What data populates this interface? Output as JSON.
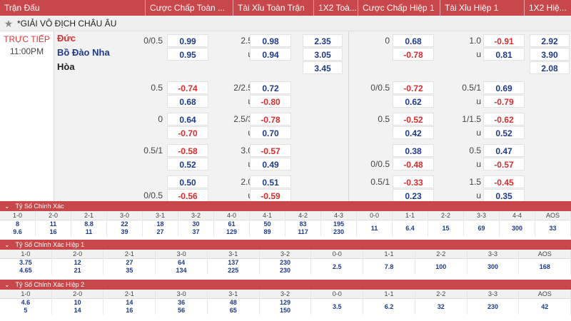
{
  "header": [
    "Trận Đấu",
    "Cược Chấp Toàn ...",
    "Tài Xỉu Toàn Trận",
    "1X2 Toà...",
    "Cược Chấp Hiệp 1",
    "Tài Xỉu Hiệp 1",
    "1X2 Hiệ..."
  ],
  "league": "*GIẢI VÔ ĐỊCH CHÂU ÂU",
  "match": {
    "status": "TRỰC TIẾP",
    "time": "11:00PM",
    "home": "Đức",
    "away": "Bồ Đào Nha",
    "draw": "Hòa"
  },
  "x12_full": [
    "2.35",
    "3.05",
    "3.45"
  ],
  "x12_half": [
    "2.92",
    "3.90",
    "2.08"
  ],
  "rows": [
    {
      "hc_full": [
        "0/0.5",
        ""
      ],
      "hc_full_odds": [
        "0.99",
        "0.95"
      ],
      "ou_full": [
        "2.5",
        "u"
      ],
      "ou_full_odds": [
        "0.98",
        "0.94"
      ],
      "hc_half": [
        "0",
        ""
      ],
      "hc_half_odds": [
        "0.68",
        "-0.78"
      ],
      "ou_half": [
        "1.0",
        "u"
      ],
      "ou_half_odds": [
        "-0.91",
        "0.81"
      ]
    },
    {
      "hc_full": [
        "0.5",
        ""
      ],
      "hc_full_odds": [
        "-0.74",
        "0.68"
      ],
      "ou_full": [
        "2/2.5",
        "u"
      ],
      "ou_full_odds": [
        "0.72",
        "-0.80"
      ],
      "hc_half": [
        "0/0.5",
        ""
      ],
      "hc_half_odds": [
        "-0.72",
        "0.62"
      ],
      "ou_half": [
        "0.5/1",
        "u"
      ],
      "ou_half_odds": [
        "0.69",
        "-0.79"
      ]
    },
    {
      "hc_full": [
        "0",
        ""
      ],
      "hc_full_odds": [
        "0.64",
        "-0.70"
      ],
      "ou_full": [
        "2.5/3",
        "u"
      ],
      "ou_full_odds": [
        "-0.78",
        "0.70"
      ],
      "hc_half": [
        "0.5",
        ""
      ],
      "hc_half_odds": [
        "-0.52",
        "0.42"
      ],
      "ou_half": [
        "1/1.5",
        "u"
      ],
      "ou_half_odds": [
        "-0.62",
        "0.52"
      ]
    },
    {
      "hc_full": [
        "0.5/1",
        ""
      ],
      "hc_full_odds": [
        "-0.58",
        "0.52"
      ],
      "ou_full": [
        "3.0",
        "u"
      ],
      "ou_full_odds": [
        "-0.57",
        "0.49"
      ],
      "hc_half": [
        "",
        "0/0.5"
      ],
      "hc_half_odds": [
        "0.38",
        "-0.48"
      ],
      "ou_half": [
        "0.5",
        "u"
      ],
      "ou_half_odds": [
        "0.47",
        "-0.57"
      ]
    },
    {
      "hc_full": [
        "",
        "0/0.5"
      ],
      "hc_full_odds": [
        "0.50",
        "-0.56"
      ],
      "ou_full": [
        "2.0",
        "u"
      ],
      "ou_full_odds": [
        "0.51",
        "-0.59"
      ],
      "hc_half": [
        "0.5/1",
        ""
      ],
      "hc_half_odds": [
        "-0.33",
        "0.23"
      ],
      "ou_half": [
        "1.5",
        "u"
      ],
      "ou_half_odds": [
        "-0.45",
        "0.35"
      ]
    }
  ],
  "correct_score": {
    "title": "Tỷ Số Chính Xác",
    "cols": [
      {
        "label": "1-0",
        "v": [
          "8",
          "9.6"
        ]
      },
      {
        "label": "2-0",
        "v": [
          "11",
          "16"
        ]
      },
      {
        "label": "2-1",
        "v": [
          "8.8",
          "11"
        ]
      },
      {
        "label": "3-0",
        "v": [
          "22",
          "39"
        ]
      },
      {
        "label": "3-1",
        "v": [
          "18",
          "27"
        ]
      },
      {
        "label": "3-2",
        "v": [
          "30",
          "37"
        ]
      },
      {
        "label": "4-0",
        "v": [
          "61",
          "129"
        ]
      },
      {
        "label": "4-1",
        "v": [
          "50",
          "89"
        ]
      },
      {
        "label": "4-2",
        "v": [
          "83",
          "117"
        ]
      },
      {
        "label": "4-3",
        "v": [
          "195",
          "230"
        ]
      },
      {
        "label": "0-0",
        "v": [
          "11"
        ]
      },
      {
        "label": "1-1",
        "v": [
          "6.4"
        ]
      },
      {
        "label": "2-2",
        "v": [
          "15"
        ]
      },
      {
        "label": "3-3",
        "v": [
          "69"
        ]
      },
      {
        "label": "4-4",
        "v": [
          "300"
        ]
      },
      {
        "label": "AOS",
        "v": [
          "33"
        ]
      }
    ]
  },
  "correct_score_h1": {
    "title": "Tỷ Số Chính Xác Hiệp 1",
    "cols": [
      {
        "label": "1-0",
        "v": [
          "3.75",
          "4.65"
        ]
      },
      {
        "label": "2-0",
        "v": [
          "12",
          "21"
        ]
      },
      {
        "label": "2-1",
        "v": [
          "27",
          "35"
        ]
      },
      {
        "label": "3-0",
        "v": [
          "64",
          "134"
        ]
      },
      {
        "label": "3-1",
        "v": [
          "137",
          "225"
        ]
      },
      {
        "label": "3-2",
        "v": [
          "230",
          "230"
        ]
      },
      {
        "label": "0-0",
        "v": [
          "2.5"
        ]
      },
      {
        "label": "1-1",
        "v": [
          "7.8"
        ]
      },
      {
        "label": "2-2",
        "v": [
          "100"
        ]
      },
      {
        "label": "3-3",
        "v": [
          "300"
        ]
      },
      {
        "label": "AOS",
        "v": [
          "168"
        ]
      }
    ]
  },
  "correct_score_h2": {
    "title": "Tỷ Số Chính Xác Hiệp 2",
    "cols": [
      {
        "label": "1-0",
        "v": [
          "4.6",
          "5"
        ]
      },
      {
        "label": "2-0",
        "v": [
          "10",
          "14"
        ]
      },
      {
        "label": "2-1",
        "v": [
          "14",
          "16"
        ]
      },
      {
        "label": "3-0",
        "v": [
          "36",
          "56"
        ]
      },
      {
        "label": "3-1",
        "v": [
          "48",
          "65"
        ]
      },
      {
        "label": "3-2",
        "v": [
          "129",
          "150"
        ]
      },
      {
        "label": "0-0",
        "v": [
          "3.5"
        ]
      },
      {
        "label": "1-1",
        "v": [
          "6.2"
        ]
      },
      {
        "label": "2-2",
        "v": [
          "32"
        ]
      },
      {
        "label": "3-3",
        "v": [
          "230"
        ]
      },
      {
        "label": "AOS",
        "v": [
          "42"
        ]
      }
    ]
  }
}
